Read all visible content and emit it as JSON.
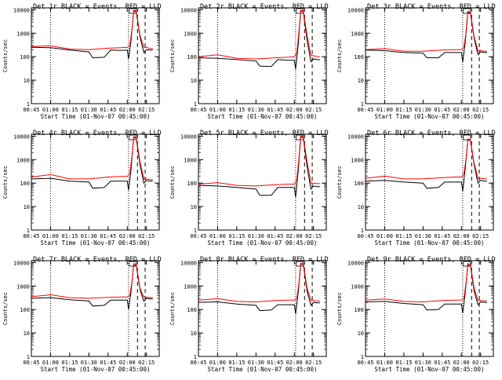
{
  "x_ticks": [
    "00:45",
    "01:00",
    "01:15",
    "01:30",
    "01:45",
    "02:00",
    "02:15"
  ],
  "y_ticks": [
    "1",
    "10",
    "100",
    "1000",
    "10000"
  ],
  "ylabel": "Counts/sec",
  "xlabel": "Start Time (01-Nov-07 00:45:00)",
  "colors": {
    "events": "#000000",
    "lld": "#ff0000"
  },
  "chart_data": [
    {
      "type": "line",
      "title": "Det 1r BLACK = Events, RED = LLD",
      "xlabel": "Start Time (01-Nov-07 00:45:00)",
      "ylabel": "Counts/sec",
      "xlim": [
        "00:45",
        "02:25"
      ],
      "ylim": [
        1,
        12000
      ],
      "yscale": "log",
      "annotations": [
        "dotted vertical lines at 01:00 and 02:01",
        "dashed vertical lines at 02:08 and 02:14"
      ],
      "series": [
        {
          "name": "BLACK = Events",
          "color": "#000000",
          "x": [
            "00:45",
            "01:00",
            "01:15",
            "01:30",
            "01:33",
            "01:42",
            "01:47",
            "01:55",
            "02:00",
            "02:01",
            "02:03",
            "02:05",
            "02:07",
            "02:10",
            "02:13",
            "02:15",
            "02:18",
            "02:20"
          ],
          "y": [
            250,
            240,
            190,
            160,
            90,
            95,
            190,
            185,
            190,
            80,
            500,
            9000,
            8000,
            700,
            150,
            200,
            190,
            190
          ]
        },
        {
          "name": "RED = LLD",
          "color": "#ff0000",
          "x": [
            "00:45",
            "01:00",
            "01:15",
            "01:30",
            "01:45",
            "01:55",
            "02:00",
            "02:02",
            "02:04",
            "02:05",
            "02:07",
            "02:10",
            "02:13",
            "02:15",
            "02:18",
            "02:20"
          ],
          "y": [
            270,
            290,
            210,
            200,
            230,
            240,
            250,
            300,
            2000,
            9500,
            9000,
            800,
            250,
            250,
            220,
            220
          ]
        }
      ]
    },
    {
      "type": "line",
      "title": "Det 2r BLACK = Events, RED = LLD",
      "xlabel": "Start Time (01-Nov-07 00:45:00)",
      "ylabel": "Counts/sec",
      "xlim": [
        "00:45",
        "02:25"
      ],
      "ylim": [
        1,
        12000
      ],
      "yscale": "log",
      "annotations": [
        "dotted vertical lines at 01:00 and 02:01",
        "dashed vertical lines at 02:08 and 02:14"
      ],
      "series": [
        {
          "name": "BLACK = Events",
          "color": "#000000",
          "x": [
            "00:45",
            "01:00",
            "01:15",
            "01:30",
            "01:33",
            "01:42",
            "01:47",
            "01:55",
            "02:00",
            "02:01",
            "02:03",
            "02:05",
            "02:07",
            "02:10",
            "02:13",
            "02:15",
            "02:18",
            "02:20"
          ],
          "y": [
            90,
            85,
            75,
            65,
            40,
            38,
            75,
            70,
            70,
            30,
            300,
            9000,
            8000,
            500,
            60,
            80,
            75,
            75
          ]
        },
        {
          "name": "RED = LLD",
          "color": "#ff0000",
          "x": [
            "00:45",
            "01:00",
            "01:15",
            "01:30",
            "01:45",
            "01:55",
            "02:00",
            "02:02",
            "02:04",
            "02:05",
            "02:07",
            "02:10",
            "02:13",
            "02:15",
            "02:18",
            "02:20"
          ],
          "y": [
            100,
            120,
            85,
            80,
            90,
            95,
            100,
            150,
            2000,
            9500,
            9000,
            800,
            110,
            110,
            100,
            100
          ]
        }
      ]
    },
    {
      "type": "line",
      "title": "Det 3r BLACK = Events, RED = LLD",
      "xlabel": "Start Time (01-Nov-07 00:45:00)",
      "ylabel": "Counts/sec",
      "xlim": [
        "00:45",
        "02:25"
      ],
      "ylim": [
        1,
        12000
      ],
      "yscale": "log",
      "annotations": [
        "dotted vertical lines at 01:00 and 02:01",
        "dashed vertical lines at 02:08 and 02:14"
      ],
      "series": [
        {
          "name": "BLACK = Events",
          "color": "#000000",
          "x": [
            "00:45",
            "01:00",
            "01:15",
            "01:30",
            "01:33",
            "01:42",
            "01:47",
            "01:55",
            "02:00",
            "02:01",
            "02:03",
            "02:05",
            "02:07",
            "02:10",
            "02:13",
            "02:15",
            "02:18",
            "02:20"
          ],
          "y": [
            190,
            180,
            150,
            140,
            90,
            90,
            150,
            150,
            150,
            60,
            400,
            8000,
            7000,
            600,
            120,
            160,
            150,
            150
          ]
        },
        {
          "name": "RED = LLD",
          "color": "#ff0000",
          "x": [
            "00:45",
            "01:00",
            "01:15",
            "01:30",
            "01:45",
            "01:55",
            "02:00",
            "02:02",
            "02:04",
            "02:05",
            "02:07",
            "02:10",
            "02:13",
            "02:15",
            "02:18",
            "02:20"
          ],
          "y": [
            200,
            220,
            170,
            170,
            190,
            200,
            200,
            250,
            1500,
            8500,
            8000,
            700,
            180,
            180,
            170,
            170
          ]
        }
      ]
    },
    {
      "type": "line",
      "title": "Det 4r BLACK = Events, RED = LLD",
      "xlabel": "Start Time (01-Nov-07 00:45:00)",
      "ylabel": "Counts/sec",
      "xlim": [
        "00:45",
        "02:25"
      ],
      "ylim": [
        1,
        12000
      ],
      "yscale": "log",
      "annotations": [
        "dotted vertical lines at 01:00 and 02:01",
        "dashed vertical lines at 02:08 and 02:14"
      ],
      "series": [
        {
          "name": "BLACK = Events",
          "color": "#000000",
          "x": [
            "00:45",
            "01:00",
            "01:15",
            "01:30",
            "01:33",
            "01:42",
            "01:47",
            "01:55",
            "02:00",
            "02:01",
            "02:03",
            "02:05",
            "02:07",
            "02:10",
            "02:13",
            "02:15",
            "02:18",
            "02:20"
          ],
          "y": [
            150,
            160,
            120,
            110,
            60,
            65,
            120,
            120,
            120,
            50,
            400,
            9000,
            8000,
            600,
            100,
            130,
            120,
            120
          ]
        },
        {
          "name": "RED = LLD",
          "color": "#ff0000",
          "x": [
            "00:45",
            "01:00",
            "01:15",
            "01:30",
            "01:45",
            "01:55",
            "02:00",
            "02:02",
            "02:04",
            "02:05",
            "02:07",
            "02:10",
            "02:13",
            "02:15",
            "02:18",
            "02:20"
          ],
          "y": [
            180,
            230,
            150,
            150,
            180,
            190,
            190,
            250,
            2000,
            9500,
            9000,
            800,
            150,
            150,
            140,
            140
          ]
        }
      ]
    },
    {
      "type": "line",
      "title": "Det 5r BLACK = Events, RED = LLD",
      "xlabel": "Start Time (01-Nov-07 00:45:00)",
      "ylabel": "Counts/sec",
      "xlim": [
        "00:45",
        "02:25"
      ],
      "ylim": [
        1,
        12000
      ],
      "yscale": "log",
      "annotations": [
        "dotted vertical lines at 01:00 and 02:01",
        "dashed vertical lines at 02:08 and 02:14"
      ],
      "series": [
        {
          "name": "BLACK = Events",
          "color": "#000000",
          "x": [
            "00:45",
            "01:00",
            "01:15",
            "01:30",
            "01:33",
            "01:42",
            "01:47",
            "01:55",
            "02:00",
            "02:01",
            "02:03",
            "02:05",
            "02:07",
            "02:10",
            "02:13",
            "02:15",
            "02:18",
            "02:20"
          ],
          "y": [
            80,
            75,
            65,
            55,
            30,
            30,
            65,
            65,
            65,
            25,
            300,
            9500,
            8500,
            500,
            55,
            75,
            70,
            70
          ]
        },
        {
          "name": "RED = LLD",
          "color": "#ff0000",
          "x": [
            "00:45",
            "01:00",
            "01:15",
            "01:30",
            "01:45",
            "01:55",
            "02:00",
            "02:02",
            "02:04",
            "02:05",
            "02:07",
            "02:10",
            "02:13",
            "02:15",
            "02:18",
            "02:20"
          ],
          "y": [
            90,
            105,
            80,
            75,
            85,
            90,
            90,
            140,
            2000,
            10000,
            9500,
            800,
            100,
            100,
            95,
            95
          ]
        }
      ]
    },
    {
      "type": "line",
      "title": "Det 6r BLACK = Events, RED = LLD",
      "xlabel": "Start Time (01-Nov-07 00:45:00)",
      "ylabel": "Counts/sec",
      "xlim": [
        "00:45",
        "02:25"
      ],
      "ylim": [
        1,
        12000
      ],
      "yscale": "log",
      "annotations": [
        "dotted vertical lines at 01:00 and 02:01",
        "dashed vertical lines at 02:08 and 02:14"
      ],
      "series": [
        {
          "name": "BLACK = Events",
          "color": "#000000",
          "x": [
            "00:45",
            "01:00",
            "01:15",
            "01:30",
            "01:33",
            "01:42",
            "01:47",
            "01:55",
            "02:00",
            "02:01",
            "02:03",
            "02:05",
            "02:07",
            "02:10",
            "02:13",
            "02:15",
            "02:18",
            "02:20"
          ],
          "y": [
            120,
            130,
            110,
            100,
            60,
            65,
            110,
            110,
            110,
            45,
            400,
            7000,
            6500,
            600,
            100,
            130,
            120,
            120
          ]
        },
        {
          "name": "RED = LLD",
          "color": "#ff0000",
          "x": [
            "00:45",
            "01:00",
            "01:15",
            "01:30",
            "01:45",
            "01:55",
            "02:00",
            "02:02",
            "02:04",
            "02:05",
            "02:07",
            "02:10",
            "02:13",
            "02:15",
            "02:18",
            "02:20"
          ],
          "y": [
            160,
            200,
            150,
            150,
            170,
            180,
            180,
            250,
            1500,
            7500,
            7000,
            700,
            160,
            160,
            150,
            150
          ]
        }
      ]
    },
    {
      "type": "line",
      "title": "Det 7r BLACK = Events, RED = LLD",
      "xlabel": "Start Time (01-Nov-07 00:45:00)",
      "ylabel": "Counts/sec",
      "xlim": [
        "00:45",
        "02:25"
      ],
      "ylim": [
        1,
        12000
      ],
      "yscale": "log",
      "annotations": [
        "dotted vertical lines at 01:00 and 02:01",
        "dashed vertical lines at 02:08 and 02:14"
      ],
      "series": [
        {
          "name": "BLACK = Events",
          "color": "#000000",
          "x": [
            "00:45",
            "01:00",
            "01:15",
            "01:30",
            "01:33",
            "01:42",
            "01:47",
            "01:55",
            "02:00",
            "02:01",
            "02:03",
            "02:05",
            "02:07",
            "02:10",
            "02:13",
            "02:15",
            "02:18",
            "02:20"
          ],
          "y": [
            300,
            320,
            260,
            230,
            140,
            150,
            250,
            250,
            250,
            100,
            600,
            8000,
            7500,
            700,
            220,
            300,
            280,
            280
          ]
        },
        {
          "name": "RED = LLD",
          "color": "#ff0000",
          "x": [
            "00:45",
            "01:00",
            "01:15",
            "01:30",
            "01:45",
            "01:55",
            "02:00",
            "02:02",
            "02:04",
            "02:05",
            "02:07",
            "02:10",
            "02:13",
            "02:15",
            "02:18",
            "02:20"
          ],
          "y": [
            350,
            420,
            320,
            300,
            330,
            340,
            340,
            400,
            2000,
            9000,
            8500,
            800,
            330,
            330,
            320,
            320
          ]
        }
      ]
    },
    {
      "type": "line",
      "title": "Det 8r BLACK = Events, RED = LLD",
      "xlabel": "Start Time (01-Nov-07 00:45:00)",
      "ylabel": "Counts/sec",
      "xlim": [
        "00:45",
        "02:25"
      ],
      "ylim": [
        1,
        12000
      ],
      "yscale": "log",
      "annotations": [
        "dotted vertical lines at 01:00 and 02:01",
        "dashed vertical lines at 02:08 and 02:14"
      ],
      "series": [
        {
          "name": "BLACK = Events",
          "color": "#000000",
          "x": [
            "00:45",
            "01:00",
            "01:15",
            "01:30",
            "01:33",
            "01:42",
            "01:47",
            "01:55",
            "02:00",
            "02:01",
            "02:03",
            "02:05",
            "02:07",
            "02:10",
            "02:13",
            "02:15",
            "02:18",
            "02:20"
          ],
          "y": [
            200,
            210,
            170,
            150,
            90,
            95,
            160,
            160,
            160,
            65,
            500,
            8500,
            8000,
            600,
            150,
            200,
            190,
            190
          ]
        },
        {
          "name": "RED = LLD",
          "color": "#ff0000",
          "x": [
            "00:45",
            "01:00",
            "01:15",
            "01:30",
            "01:45",
            "01:55",
            "02:00",
            "02:02",
            "02:04",
            "02:05",
            "02:07",
            "02:10",
            "02:13",
            "02:15",
            "02:18",
            "02:20"
          ],
          "y": [
            250,
            290,
            220,
            210,
            240,
            250,
            250,
            300,
            2000,
            9500,
            9000,
            800,
            240,
            240,
            230,
            230
          ]
        }
      ]
    },
    {
      "type": "line",
      "title": "Det 9r BLACK = Events, RED = LLD",
      "xlabel": "Start Time (01-Nov-07 00:45:00)",
      "ylabel": "Counts/sec",
      "xlim": [
        "00:45",
        "02:25"
      ],
      "ylim": [
        1,
        12000
      ],
      "yscale": "log",
      "annotations": [
        "dotted vertical lines at 01:00 and 02:01",
        "dashed vertical lines at 02:08 and 02:14"
      ],
      "series": [
        {
          "name": "BLACK = Events",
          "color": "#000000",
          "x": [
            "00:45",
            "01:00",
            "01:15",
            "01:30",
            "01:33",
            "01:42",
            "01:47",
            "01:55",
            "02:00",
            "02:01",
            "02:03",
            "02:05",
            "02:07",
            "02:10",
            "02:13",
            "02:15",
            "02:18",
            "02:20"
          ],
          "y": [
            210,
            220,
            180,
            160,
            95,
            100,
            170,
            170,
            170,
            70,
            500,
            8000,
            7500,
            600,
            160,
            210,
            200,
            200
          ]
        },
        {
          "name": "RED = LLD",
          "color": "#ff0000",
          "x": [
            "00:45",
            "01:00",
            "01:15",
            "01:30",
            "01:45",
            "01:55",
            "02:00",
            "02:02",
            "02:04",
            "02:05",
            "02:07",
            "02:10",
            "02:13",
            "02:15",
            "02:18",
            "02:20"
          ],
          "y": [
            250,
            280,
            220,
            210,
            240,
            250,
            250,
            300,
            2000,
            9000,
            8500,
            800,
            240,
            240,
            230,
            230
          ]
        }
      ]
    }
  ]
}
